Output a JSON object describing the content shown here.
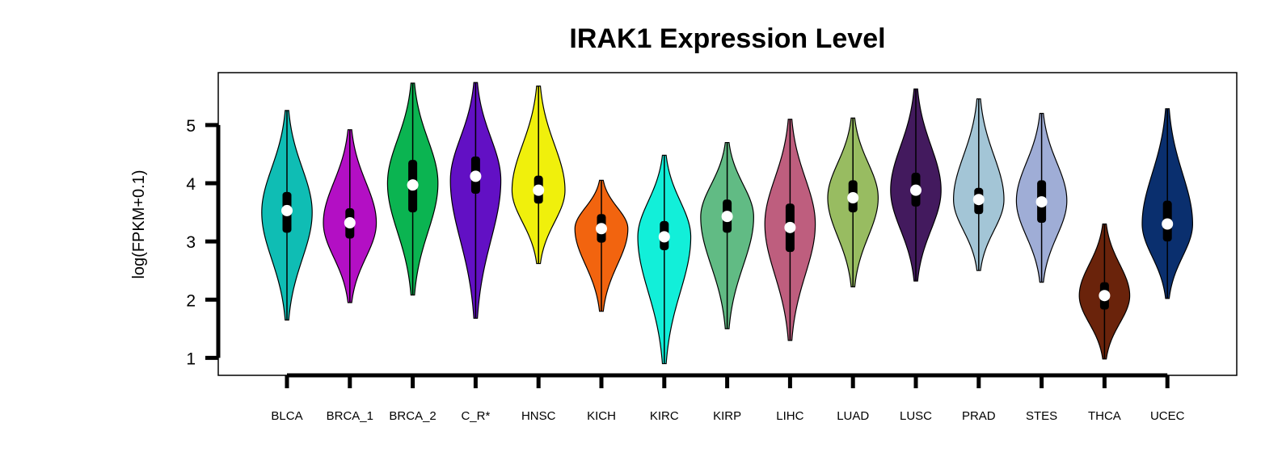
{
  "chart_data": {
    "type": "violin",
    "title": "IRAK1 Expression Level",
    "xlabel": "",
    "ylabel": "log(FPKM+0.1)",
    "ylim": [
      0.7,
      5.9
    ],
    "yticks": [
      1,
      2,
      3,
      4,
      5
    ],
    "grid": false,
    "legend": "none",
    "categories": [
      "BLCA",
      "BRCA_1",
      "BRCA_2",
      "C_R*",
      "HNSC",
      "KICH",
      "KIRC",
      "KIRP",
      "LIHC",
      "LUAD",
      "LUSC",
      "PRAD",
      "STES",
      "THCA",
      "UCEC"
    ],
    "series": [
      {
        "category": "BLCA",
        "color": "#0fbdb4",
        "min": 1.65,
        "max": 5.25,
        "q1": 3.15,
        "median": 3.53,
        "q3": 3.85,
        "mode": 3.5,
        "halfwidth": 0.4
      },
      {
        "category": "BRCA_1",
        "color": "#b30fc4",
        "min": 1.95,
        "max": 4.92,
        "q1": 3.05,
        "median": 3.32,
        "q3": 3.57,
        "mode": 3.32,
        "halfwidth": 0.42
      },
      {
        "category": "BRCA_2",
        "color": "#0bb451",
        "min": 2.08,
        "max": 5.72,
        "q1": 3.5,
        "median": 3.97,
        "q3": 4.4,
        "mode": 4.0,
        "halfwidth": 0.4
      },
      {
        "category": "C_R*",
        "color": "#6210c4",
        "min": 1.68,
        "max": 5.73,
        "q1": 3.82,
        "median": 4.12,
        "q3": 4.46,
        "mode": 4.05,
        "halfwidth": 0.4
      },
      {
        "category": "HNSC",
        "color": "#f0f00c",
        "min": 2.62,
        "max": 5.67,
        "q1": 3.65,
        "median": 3.88,
        "q3": 4.13,
        "mode": 3.88,
        "halfwidth": 0.42
      },
      {
        "category": "KICH",
        "color": "#f2640f",
        "min": 1.8,
        "max": 4.05,
        "q1": 2.98,
        "median": 3.22,
        "q3": 3.47,
        "mode": 3.22,
        "halfwidth": 0.42
      },
      {
        "category": "KIRC",
        "color": "#12efd9",
        "min": 0.9,
        "max": 4.48,
        "q1": 2.85,
        "median": 3.08,
        "q3": 3.35,
        "mode": 3.08,
        "halfwidth": 0.42
      },
      {
        "category": "KIRP",
        "color": "#61bb84",
        "min": 1.5,
        "max": 4.7,
        "q1": 3.15,
        "median": 3.43,
        "q3": 3.72,
        "mode": 3.42,
        "halfwidth": 0.42
      },
      {
        "category": "LIHC",
        "color": "#be5e7e",
        "min": 1.3,
        "max": 5.1,
        "q1": 2.82,
        "median": 3.24,
        "q3": 3.65,
        "mode": 3.3,
        "halfwidth": 0.4
      },
      {
        "category": "LUAD",
        "color": "#98bc61",
        "min": 2.22,
        "max": 5.12,
        "q1": 3.5,
        "median": 3.75,
        "q3": 4.05,
        "mode": 3.75,
        "halfwidth": 0.4
      },
      {
        "category": "LUSC",
        "color": "#431a5e",
        "min": 2.32,
        "max": 5.62,
        "q1": 3.6,
        "median": 3.88,
        "q3": 4.18,
        "mode": 3.88,
        "halfwidth": 0.4
      },
      {
        "category": "PRAD",
        "color": "#a3c5d6",
        "min": 2.5,
        "max": 5.45,
        "q1": 3.47,
        "median": 3.72,
        "q3": 3.92,
        "mode": 3.72,
        "halfwidth": 0.4
      },
      {
        "category": "STES",
        "color": "#9fadd6",
        "min": 2.3,
        "max": 5.2,
        "q1": 3.32,
        "median": 3.68,
        "q3": 4.05,
        "mode": 3.7,
        "halfwidth": 0.4
      },
      {
        "category": "THCA",
        "color": "#6a230b",
        "min": 0.98,
        "max": 3.3,
        "q1": 1.83,
        "median": 2.07,
        "q3": 2.3,
        "mode": 2.07,
        "halfwidth": 0.4
      },
      {
        "category": "UCEC",
        "color": "#0a2f6e",
        "min": 2.02,
        "max": 5.28,
        "q1": 3.0,
        "median": 3.3,
        "q3": 3.7,
        "mode": 3.3,
        "halfwidth": 0.4
      }
    ]
  }
}
